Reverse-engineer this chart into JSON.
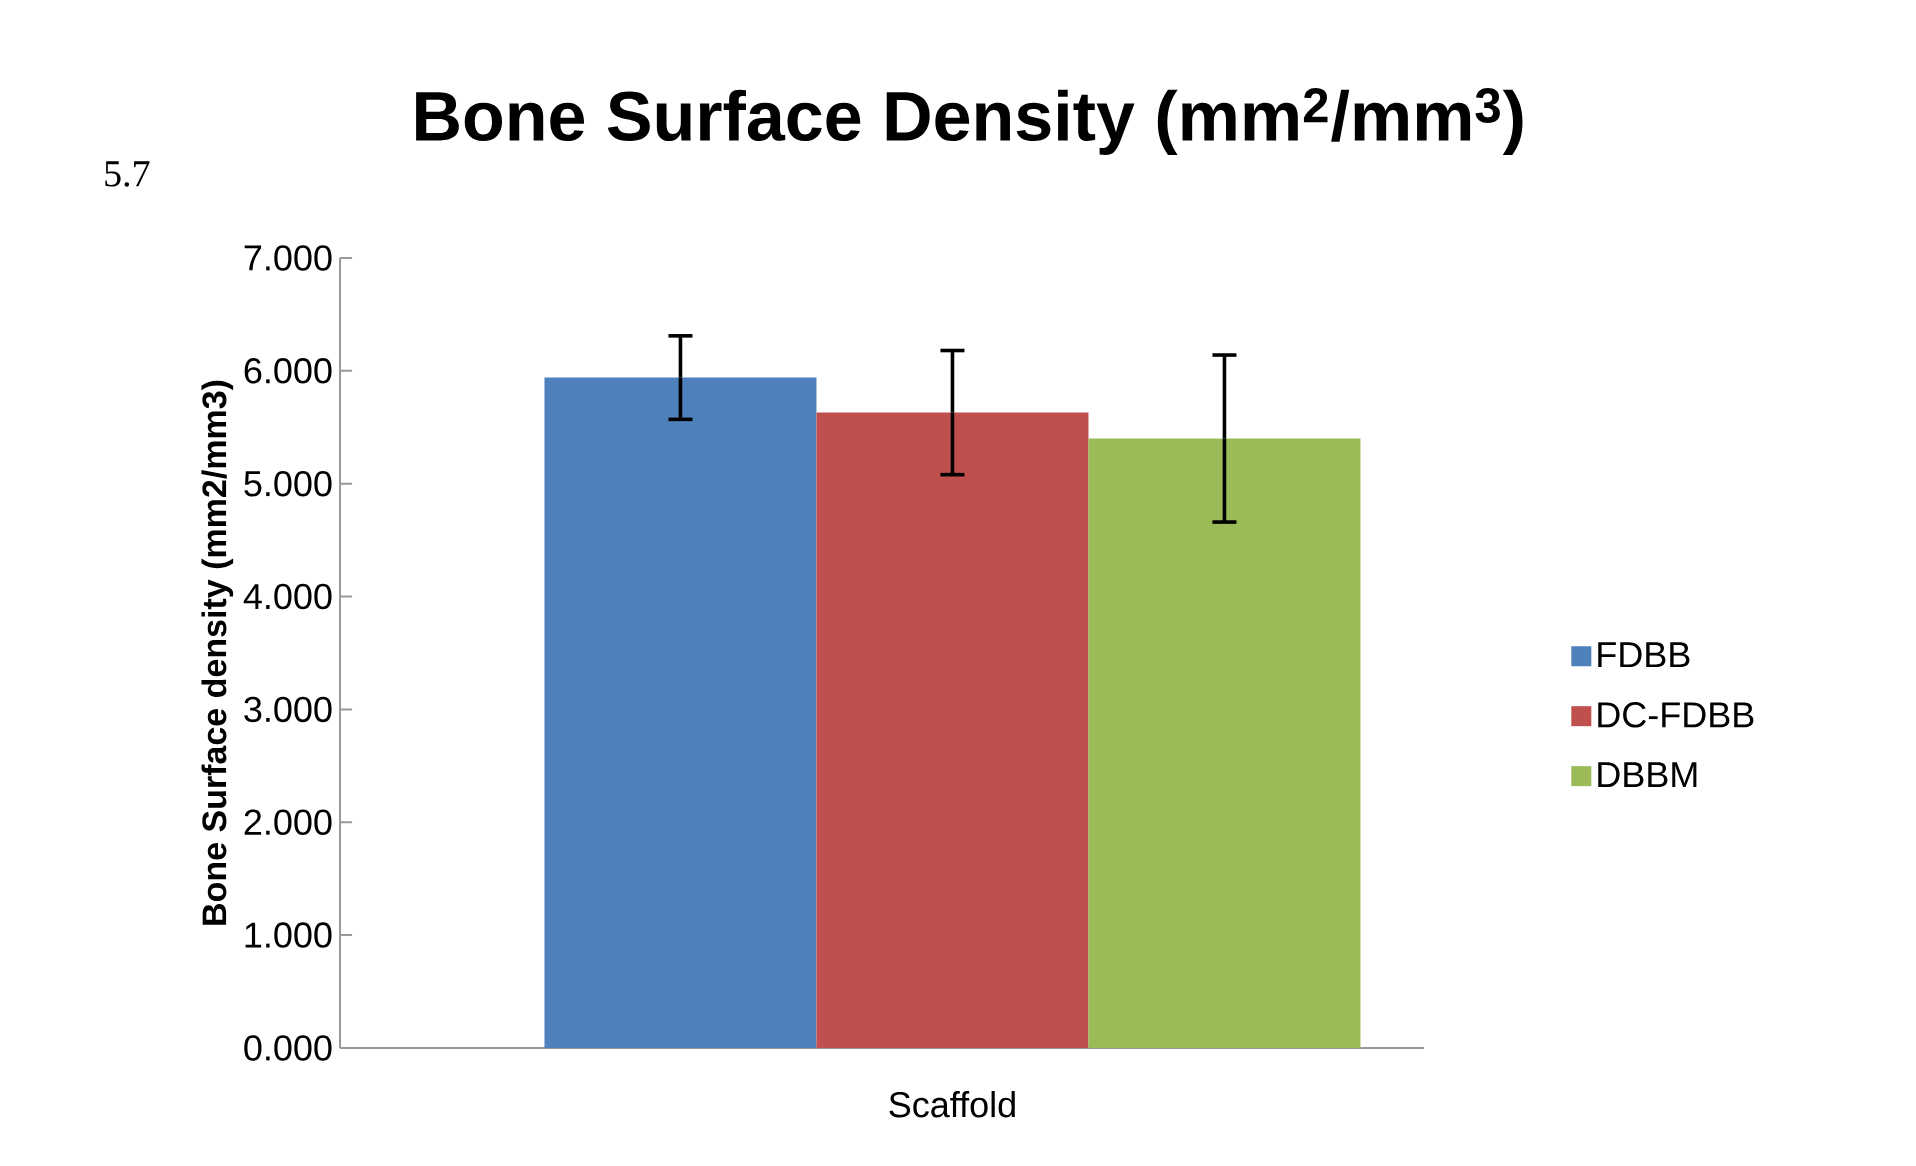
{
  "chart_data": {
    "type": "bar",
    "title": "Bone Surface Density (mm$^{2}$/mm$^{3}$)",
    "ylabel": "Bone Surface density (mm2/mm3)",
    "annotations": [
      "5.7"
    ],
    "categories": [
      "Scaffold"
    ],
    "series": [
      {
        "name": "FDBB",
        "color": "#4f81bd",
        "values": [
          5.94
        ],
        "errors": [
          0.37
        ]
      },
      {
        "name": "DC-FDBB",
        "color": "#c0504d",
        "values": [
          5.63
        ],
        "errors": [
          0.55
        ]
      },
      {
        "name": "DBBM",
        "color": "#9bbb59",
        "values": [
          5.4
        ],
        "errors": [
          0.74
        ]
      }
    ],
    "ylim": [
      0,
      7
    ],
    "yticks": [
      {
        "value": 0,
        "label": "0.000"
      },
      {
        "value": 1,
        "label": "1.000"
      },
      {
        "value": 2,
        "label": "2.000"
      },
      {
        "value": 3,
        "label": "3.000"
      },
      {
        "value": 4,
        "label": "4.000"
      },
      {
        "value": 5,
        "label": "5.000"
      },
      {
        "value": 6,
        "label": "6.000"
      },
      {
        "value": 7,
        "label": "7.000"
      }
    ],
    "legend": "right"
  }
}
